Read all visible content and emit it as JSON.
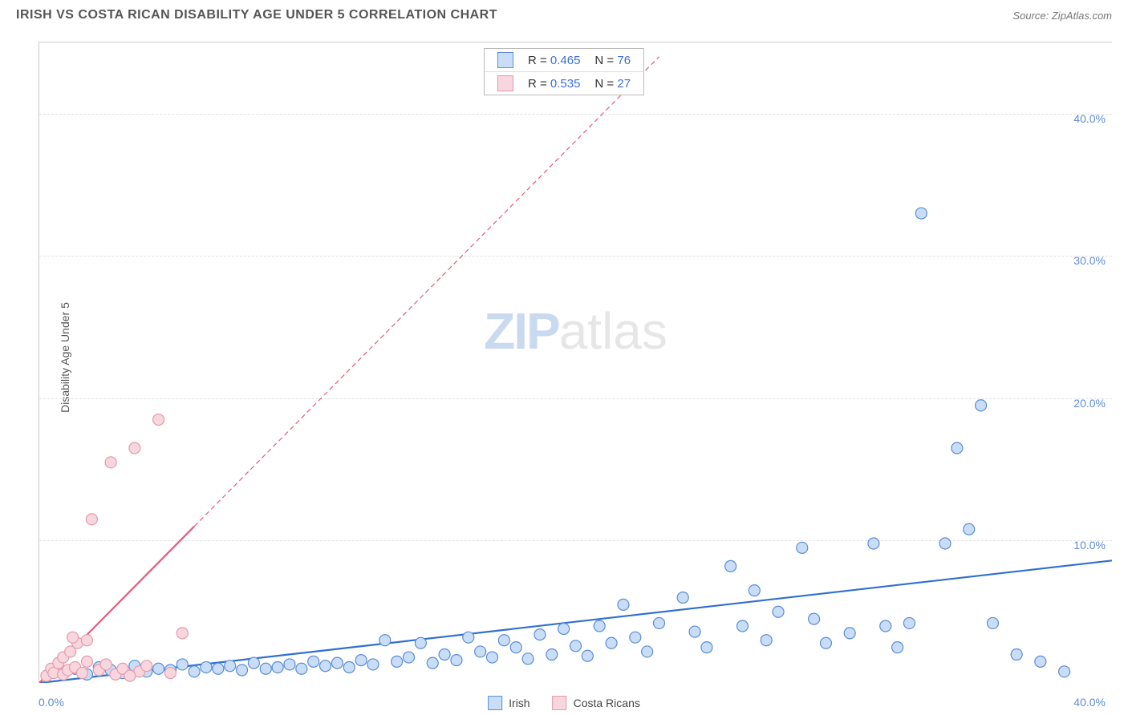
{
  "title": "IRISH VS COSTA RICAN DISABILITY AGE UNDER 5 CORRELATION CHART",
  "source_label": "Source: ZipAtlas.com",
  "ylabel": "Disability Age Under 5",
  "watermark": {
    "part1": "ZIP",
    "part2": "atlas"
  },
  "chart": {
    "type": "scatter",
    "xlim": [
      0,
      45
    ],
    "ylim": [
      0,
      45
    ],
    "xtick_labels": {
      "min": "0.0%",
      "max": "40.0%"
    },
    "ytick_labels": [
      "10.0%",
      "20.0%",
      "30.0%",
      "40.0%"
    ],
    "ytick_values": [
      10,
      20,
      30,
      40
    ],
    "grid_color": "#e2e2e2",
    "background_color": "#ffffff",
    "axis_color": "#cccccc",
    "tick_font_color": "#5b8dd6",
    "label_font_color": "#555555",
    "label_fontsize": 14,
    "marker_radius": 7,
    "marker_stroke_width": 1.2,
    "trend_line_width": 2.2,
    "trend_dash": "6 4"
  },
  "series": [
    {
      "name": "Irish",
      "fill_color": "#c9def6",
      "stroke_color": "#5b8dd6",
      "line_color": "#2f6fd0",
      "r_value": "0.465",
      "n_value": "76",
      "trend": {
        "x1": 0,
        "y1": 0,
        "x2": 45,
        "y2": 8.6,
        "dashed": false
      },
      "points": [
        [
          1.0,
          0.8
        ],
        [
          1.5,
          1.0
        ],
        [
          2.0,
          0.6
        ],
        [
          2.5,
          1.1
        ],
        [
          3.0,
          0.9
        ],
        [
          3.5,
          0.7
        ],
        [
          4.0,
          1.2
        ],
        [
          4.5,
          0.8
        ],
        [
          5.0,
          1.0
        ],
        [
          5.5,
          0.9
        ],
        [
          6.0,
          1.3
        ],
        [
          6.5,
          0.8
        ],
        [
          7.0,
          1.1
        ],
        [
          7.5,
          1.0
        ],
        [
          8.0,
          1.2
        ],
        [
          8.5,
          0.9
        ],
        [
          9.0,
          1.4
        ],
        [
          9.5,
          1.0
        ],
        [
          10.0,
          1.1
        ],
        [
          10.5,
          1.3
        ],
        [
          11.0,
          1.0
        ],
        [
          11.5,
          1.5
        ],
        [
          12.0,
          1.2
        ],
        [
          12.5,
          1.4
        ],
        [
          13.0,
          1.1
        ],
        [
          13.5,
          1.6
        ],
        [
          14.0,
          1.3
        ],
        [
          14.5,
          3.0
        ],
        [
          15.0,
          1.5
        ],
        [
          15.5,
          1.8
        ],
        [
          16.0,
          2.8
        ],
        [
          16.5,
          1.4
        ],
        [
          17.0,
          2.0
        ],
        [
          17.5,
          1.6
        ],
        [
          18.0,
          3.2
        ],
        [
          18.5,
          2.2
        ],
        [
          19.0,
          1.8
        ],
        [
          19.5,
          3.0
        ],
        [
          20.0,
          2.5
        ],
        [
          20.5,
          1.7
        ],
        [
          21.0,
          3.4
        ],
        [
          21.5,
          2.0
        ],
        [
          22.0,
          3.8
        ],
        [
          22.5,
          2.6
        ],
        [
          23.0,
          1.9
        ],
        [
          23.5,
          4.0
        ],
        [
          24.0,
          2.8
        ],
        [
          24.5,
          5.5
        ],
        [
          25.0,
          3.2
        ],
        [
          25.5,
          2.2
        ],
        [
          26.0,
          4.2
        ],
        [
          27.0,
          6.0
        ],
        [
          27.5,
          3.6
        ],
        [
          28.0,
          2.5
        ],
        [
          29.0,
          8.2
        ],
        [
          29.5,
          4.0
        ],
        [
          30.0,
          6.5
        ],
        [
          30.5,
          3.0
        ],
        [
          32.0,
          9.5
        ],
        [
          32.5,
          4.5
        ],
        [
          33.0,
          2.8
        ],
        [
          34.0,
          3.5
        ],
        [
          35.0,
          9.8
        ],
        [
          35.5,
          4.0
        ],
        [
          36.0,
          2.5
        ],
        [
          37.0,
          33.0
        ],
        [
          38.0,
          9.8
        ],
        [
          38.5,
          16.5
        ],
        [
          39.0,
          10.8
        ],
        [
          39.5,
          19.5
        ],
        [
          40.0,
          4.2
        ],
        [
          41.0,
          2.0
        ],
        [
          42.0,
          1.5
        ],
        [
          43.0,
          0.8
        ],
        [
          36.5,
          4.2
        ],
        [
          31.0,
          5.0
        ]
      ]
    },
    {
      "name": "Costa Ricans",
      "fill_color": "#f7d6dd",
      "stroke_color": "#e59aad",
      "line_color": "#e45a7c",
      "r_value": "0.535",
      "n_value": "27",
      "trend": {
        "x1": 0,
        "y1": 0,
        "x2": 6.5,
        "y2": 11.0,
        "dashed": false
      },
      "trend_ext": {
        "x1": 6.5,
        "y1": 11.0,
        "x2": 26,
        "y2": 44,
        "dashed": true
      },
      "points": [
        [
          0.3,
          0.5
        ],
        [
          0.5,
          1.0
        ],
        [
          0.6,
          0.7
        ],
        [
          0.8,
          1.4
        ],
        [
          1.0,
          0.6
        ],
        [
          1.0,
          1.8
        ],
        [
          1.2,
          0.9
        ],
        [
          1.3,
          2.2
        ],
        [
          1.5,
          1.1
        ],
        [
          1.6,
          2.8
        ],
        [
          1.8,
          0.7
        ],
        [
          2.0,
          1.5
        ],
        [
          2.2,
          11.5
        ],
        [
          2.5,
          0.9
        ],
        [
          2.8,
          1.3
        ],
        [
          3.0,
          15.5
        ],
        [
          3.2,
          0.6
        ],
        [
          3.5,
          1.0
        ],
        [
          4.0,
          16.5
        ],
        [
          4.2,
          0.8
        ],
        [
          4.5,
          1.2
        ],
        [
          5.0,
          18.5
        ],
        [
          5.5,
          0.7
        ],
        [
          6.0,
          3.5
        ],
        [
          3.8,
          0.5
        ],
        [
          2.0,
          3.0
        ],
        [
          1.4,
          3.2
        ]
      ]
    }
  ],
  "legend": {
    "bottom": [
      {
        "label": "Irish",
        "fill": "#c9def6",
        "stroke": "#5b8dd6"
      },
      {
        "label": "Costa Ricans",
        "fill": "#f7d6dd",
        "stroke": "#e59aad"
      }
    ]
  }
}
